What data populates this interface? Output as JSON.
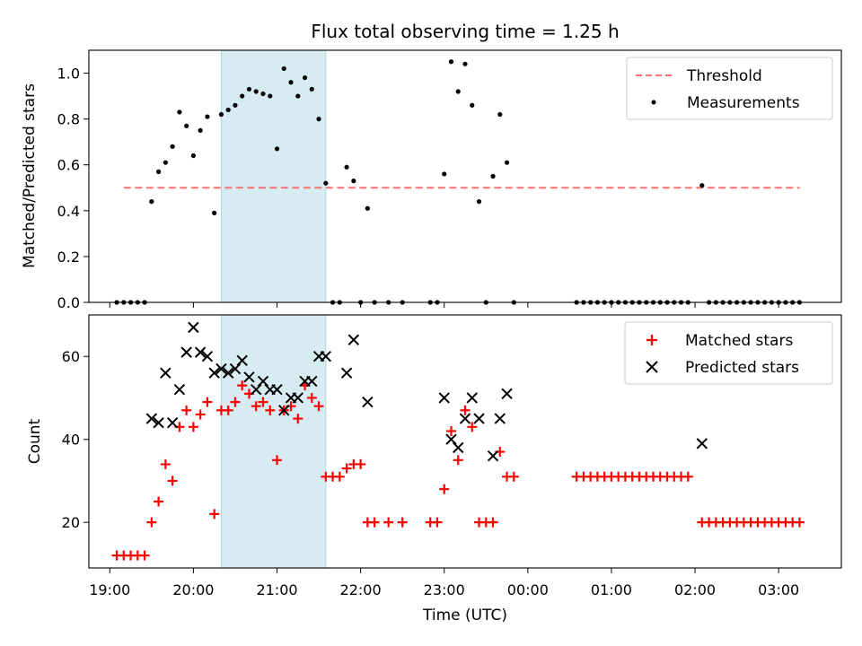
{
  "title": "Flux total observing time = 1.25 h",
  "xlabel": "Time (UTC)",
  "x_tick_labels": [
    "19:00",
    "20:00",
    "21:00",
    "22:00",
    "23:00",
    "00:00",
    "01:00",
    "02:00",
    "03:00"
  ],
  "colors": {
    "threshold": "#ff7070",
    "measurement": "#000000",
    "matched": "#ff0000",
    "predicted": "#000000",
    "highlight": "#add8e6"
  },
  "chart_data": [
    {
      "type": "scatter",
      "ylabel": "Matched/Predicted stars",
      "xlim": [
        "18:45",
        "03:45"
      ],
      "ylim": [
        0,
        1.1
      ],
      "y_ticks": [
        0.0,
        0.2,
        0.4,
        0.6,
        0.8,
        1.0
      ],
      "y_tick_labels": [
        "0.0",
        "0.2",
        "0.4",
        "0.6",
        "0.8",
        "1.0"
      ],
      "highlight_span": [
        "20:20",
        "21:35"
      ],
      "legend": {
        "placement": "top-right",
        "entries": [
          "Threshold",
          "Measurements"
        ]
      },
      "threshold": {
        "name": "Threshold",
        "y": 0.5,
        "x_range": [
          "19:10",
          "03:15"
        ],
        "style": "dashed"
      },
      "series": [
        {
          "name": "Measurements",
          "points": [
            [
              "19:05",
              0
            ],
            [
              "19:10",
              0
            ],
            [
              "19:15",
              0
            ],
            [
              "19:20",
              0
            ],
            [
              "19:25",
              0
            ],
            [
              "19:30",
              0.44
            ],
            [
              "19:35",
              0.57
            ],
            [
              "19:40",
              0.61
            ],
            [
              "19:45",
              0.68
            ],
            [
              "19:50",
              0.83
            ],
            [
              "19:55",
              0.77
            ],
            [
              "20:00",
              0.64
            ],
            [
              "20:05",
              0.75
            ],
            [
              "20:10",
              0.81
            ],
            [
              "20:15",
              0.39
            ],
            [
              "20:20",
              0.82
            ],
            [
              "20:25",
              0.84
            ],
            [
              "20:30",
              0.86
            ],
            [
              "20:35",
              0.9
            ],
            [
              "20:40",
              0.93
            ],
            [
              "20:45",
              0.92
            ],
            [
              "20:50",
              0.91
            ],
            [
              "20:55",
              0.9
            ],
            [
              "21:00",
              0.67
            ],
            [
              "21:05",
              1.02
            ],
            [
              "21:10",
              0.96
            ],
            [
              "21:15",
              0.9
            ],
            [
              "21:20",
              0.98
            ],
            [
              "21:25",
              0.93
            ],
            [
              "21:30",
              0.8
            ],
            [
              "21:35",
              0.52
            ],
            [
              "21:40",
              0
            ],
            [
              "21:45",
              0
            ],
            [
              "21:50",
              0.59
            ],
            [
              "21:55",
              0.53
            ],
            [
              "22:00",
              0
            ],
            [
              "22:05",
              0.41
            ],
            [
              "22:10",
              0
            ],
            [
              "22:20",
              0
            ],
            [
              "22:30",
              0
            ],
            [
              "22:50",
              0
            ],
            [
              "22:55",
              0
            ],
            [
              "23:00",
              0.56
            ],
            [
              "23:05",
              1.05
            ],
            [
              "23:10",
              0.92
            ],
            [
              "23:15",
              1.04
            ],
            [
              "23:20",
              0.86
            ],
            [
              "23:25",
              0.44
            ],
            [
              "23:30",
              0
            ],
            [
              "23:35",
              0.55
            ],
            [
              "23:40",
              0.82
            ],
            [
              "23:45",
              0.61
            ],
            [
              "23:50",
              0
            ],
            [
              "00:35",
              0
            ],
            [
              "00:40",
              0
            ],
            [
              "00:45",
              0
            ],
            [
              "00:50",
              0
            ],
            [
              "00:55",
              0
            ],
            [
              "01:00",
              0
            ],
            [
              "01:05",
              0
            ],
            [
              "01:10",
              0
            ],
            [
              "01:15",
              0
            ],
            [
              "01:20",
              0
            ],
            [
              "01:25",
              0
            ],
            [
              "01:30",
              0
            ],
            [
              "01:35",
              0
            ],
            [
              "01:40",
              0
            ],
            [
              "01:45",
              0
            ],
            [
              "01:50",
              0
            ],
            [
              "01:55",
              0
            ],
            [
              "02:05",
              0.51
            ],
            [
              "02:10",
              0
            ],
            [
              "02:15",
              0
            ],
            [
              "02:20",
              0
            ],
            [
              "02:25",
              0
            ],
            [
              "02:30",
              0
            ],
            [
              "02:35",
              0
            ],
            [
              "02:40",
              0
            ],
            [
              "02:45",
              0
            ],
            [
              "02:50",
              0
            ],
            [
              "02:55",
              0
            ],
            [
              "03:00",
              0
            ],
            [
              "03:05",
              0
            ],
            [
              "03:10",
              0
            ],
            [
              "03:15",
              0
            ]
          ]
        }
      ]
    },
    {
      "type": "scatter",
      "ylabel": "Count",
      "xlim": [
        "18:45",
        "03:45"
      ],
      "ylim": [
        9,
        70
      ],
      "y_ticks": [
        20,
        40,
        60
      ],
      "y_tick_labels": [
        "20",
        "40",
        "60"
      ],
      "highlight_span": [
        "20:20",
        "21:35"
      ],
      "legend": {
        "placement": "top-right",
        "entries": [
          "Matched stars",
          "Predicted stars"
        ]
      },
      "series": [
        {
          "name": "Matched stars",
          "marker": "plus",
          "points": [
            [
              "19:05",
              12
            ],
            [
              "19:10",
              12
            ],
            [
              "19:15",
              12
            ],
            [
              "19:20",
              12
            ],
            [
              "19:25",
              12
            ],
            [
              "19:30",
              20
            ],
            [
              "19:35",
              25
            ],
            [
              "19:40",
              34
            ],
            [
              "19:45",
              30
            ],
            [
              "19:50",
              43
            ],
            [
              "19:55",
              47
            ],
            [
              "20:00",
              43
            ],
            [
              "20:05",
              46
            ],
            [
              "20:10",
              49
            ],
            [
              "20:15",
              22
            ],
            [
              "20:20",
              47
            ],
            [
              "20:25",
              47
            ],
            [
              "20:30",
              49
            ],
            [
              "20:35",
              53
            ],
            [
              "20:40",
              51
            ],
            [
              "20:45",
              48
            ],
            [
              "20:50",
              49
            ],
            [
              "20:55",
              47
            ],
            [
              "21:00",
              35
            ],
            [
              "21:05",
              47
            ],
            [
              "21:10",
              48
            ],
            [
              "21:15",
              45
            ],
            [
              "21:20",
              53
            ],
            [
              "21:25",
              50
            ],
            [
              "21:30",
              48
            ],
            [
              "21:35",
              31
            ],
            [
              "21:40",
              31
            ],
            [
              "21:45",
              31
            ],
            [
              "21:50",
              33
            ],
            [
              "21:55",
              34
            ],
            [
              "22:00",
              34
            ],
            [
              "22:05",
              20
            ],
            [
              "22:10",
              20
            ],
            [
              "22:20",
              20
            ],
            [
              "22:30",
              20
            ],
            [
              "22:50",
              20
            ],
            [
              "22:55",
              20
            ],
            [
              "23:00",
              28
            ],
            [
              "23:05",
              42
            ],
            [
              "23:10",
              35
            ],
            [
              "23:15",
              47
            ],
            [
              "23:20",
              43
            ],
            [
              "23:25",
              20
            ],
            [
              "23:30",
              20
            ],
            [
              "23:35",
              20
            ],
            [
              "23:40",
              37
            ],
            [
              "23:45",
              31
            ],
            [
              "23:50",
              31
            ],
            [
              "00:35",
              31
            ],
            [
              "00:40",
              31
            ],
            [
              "00:45",
              31
            ],
            [
              "00:50",
              31
            ],
            [
              "00:55",
              31
            ],
            [
              "01:00",
              31
            ],
            [
              "01:05",
              31
            ],
            [
              "01:10",
              31
            ],
            [
              "01:15",
              31
            ],
            [
              "01:20",
              31
            ],
            [
              "01:25",
              31
            ],
            [
              "01:30",
              31
            ],
            [
              "01:35",
              31
            ],
            [
              "01:40",
              31
            ],
            [
              "01:45",
              31
            ],
            [
              "01:50",
              31
            ],
            [
              "01:55",
              31
            ],
            [
              "02:05",
              20
            ],
            [
              "02:10",
              20
            ],
            [
              "02:15",
              20
            ],
            [
              "02:20",
              20
            ],
            [
              "02:25",
              20
            ],
            [
              "02:30",
              20
            ],
            [
              "02:35",
              20
            ],
            [
              "02:40",
              20
            ],
            [
              "02:45",
              20
            ],
            [
              "02:50",
              20
            ],
            [
              "02:55",
              20
            ],
            [
              "03:00",
              20
            ],
            [
              "03:05",
              20
            ],
            [
              "03:10",
              20
            ],
            [
              "03:15",
              20
            ]
          ]
        },
        {
          "name": "Predicted stars",
          "marker": "x",
          "points": [
            [
              "19:30",
              45
            ],
            [
              "19:35",
              44
            ],
            [
              "19:40",
              56
            ],
            [
              "19:45",
              44
            ],
            [
              "19:50",
              52
            ],
            [
              "19:55",
              61
            ],
            [
              "20:00",
              67
            ],
            [
              "20:05",
              61
            ],
            [
              "20:10",
              60
            ],
            [
              "20:15",
              56
            ],
            [
              "20:20",
              57
            ],
            [
              "20:25",
              56
            ],
            [
              "20:30",
              57
            ],
            [
              "20:35",
              59
            ],
            [
              "20:40",
              55
            ],
            [
              "20:45",
              52
            ],
            [
              "20:50",
              54
            ],
            [
              "20:55",
              52
            ],
            [
              "21:00",
              52
            ],
            [
              "21:05",
              47
            ],
            [
              "21:10",
              50
            ],
            [
              "21:15",
              50
            ],
            [
              "21:20",
              54
            ],
            [
              "21:25",
              54
            ],
            [
              "21:30",
              60
            ],
            [
              "21:35",
              60
            ],
            [
              "21:50",
              56
            ],
            [
              "21:55",
              64
            ],
            [
              "22:05",
              49
            ],
            [
              "23:00",
              50
            ],
            [
              "23:05",
              40
            ],
            [
              "23:10",
              38
            ],
            [
              "23:15",
              45
            ],
            [
              "23:20",
              50
            ],
            [
              "23:25",
              45
            ],
            [
              "23:35",
              36
            ],
            [
              "23:40",
              45
            ],
            [
              "23:45",
              51
            ],
            [
              "02:05",
              39
            ]
          ]
        }
      ]
    }
  ]
}
